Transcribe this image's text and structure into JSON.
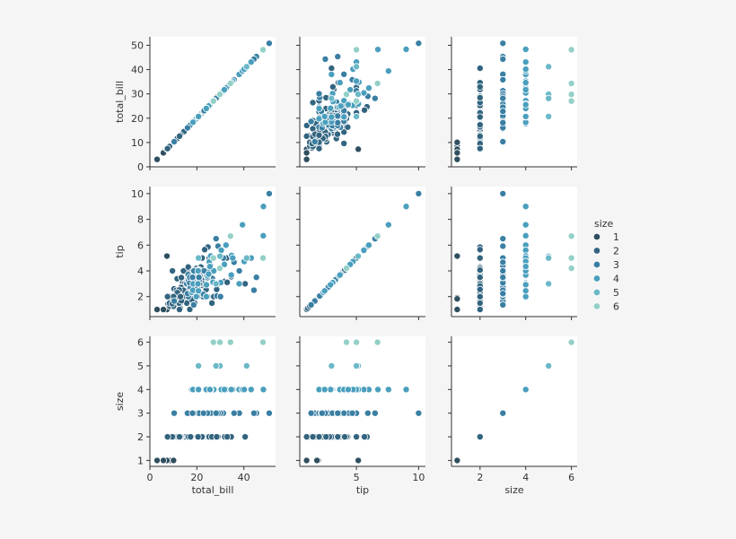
{
  "chart_data": {
    "type": "scatter",
    "title": "",
    "variables": [
      "total_bill",
      "tip",
      "size"
    ],
    "hue": "size",
    "legend": {
      "title": "size",
      "placement": "right",
      "entries": [
        {
          "label": "1",
          "color": "#2f4f5f"
        },
        {
          "label": "2",
          "color": "#32647f"
        },
        {
          "label": "3",
          "color": "#3a7fa3"
        },
        {
          "label": "4",
          "color": "#4a9fbd"
        },
        {
          "label": "5",
          "color": "#6bb8c8"
        },
        {
          "label": "6",
          "color": "#93d0c8"
        }
      ]
    },
    "axes": {
      "total_bill": {
        "label": "total_bill",
        "range": [
          0,
          53.5
        ],
        "ticks": [
          0,
          10,
          20,
          30,
          40,
          50
        ],
        "bottom_ticks": [
          0,
          20,
          40
        ]
      },
      "tip": {
        "label": "tip",
        "range": [
          0.45,
          10.55
        ],
        "ticks": [
          2,
          4,
          6,
          8,
          10
        ],
        "bottom_ticks": [
          5,
          10
        ]
      },
      "size": {
        "label": "size",
        "range": [
          0.75,
          6.25
        ],
        "ticks": [
          1,
          2,
          3,
          4,
          5,
          6
        ],
        "bottom_ticks": [
          2,
          4,
          6
        ]
      }
    },
    "points": [
      [
        3.07,
        1.0,
        1
      ],
      [
        5.75,
        1.0,
        1
      ],
      [
        7.25,
        1.0,
        1
      ],
      [
        8.58,
        1.92,
        1
      ],
      [
        10.07,
        1.83,
        1
      ],
      [
        9.6,
        4.0,
        2
      ],
      [
        7.25,
        5.15,
        1
      ],
      [
        10.34,
        1.66,
        3
      ],
      [
        10.29,
        2.6,
        2
      ],
      [
        11.02,
        1.98,
        2
      ],
      [
        12.54,
        2.5,
        2
      ],
      [
        13.0,
        2.0,
        2
      ],
      [
        14.78,
        3.23,
        2
      ],
      [
        15.04,
        1.96,
        2
      ],
      [
        16.99,
        1.01,
        2
      ],
      [
        17.81,
        2.34,
        4
      ],
      [
        18.43,
        3.0,
        4
      ],
      [
        18.04,
        3.0,
        2
      ],
      [
        19.49,
        3.51,
        2
      ],
      [
        20.29,
        2.75,
        2
      ],
      [
        20.65,
        3.35,
        3
      ],
      [
        21.01,
        3.5,
        3
      ],
      [
        21.58,
        3.92,
        2
      ],
      [
        22.23,
        5.0,
        2
      ],
      [
        22.42,
        3.48,
        2
      ],
      [
        23.68,
        3.31,
        2
      ],
      [
        24.59,
        3.61,
        4
      ],
      [
        24.06,
        3.6,
        3
      ],
      [
        25.29,
        4.71,
        4
      ],
      [
        25.56,
        4.34,
        4
      ],
      [
        26.88,
        3.12,
        4
      ],
      [
        28.44,
        2.56,
        2
      ],
      [
        27.2,
        4.0,
        4
      ],
      [
        29.85,
        5.14,
        5
      ],
      [
        30.14,
        3.09,
        4
      ],
      [
        31.27,
        5.0,
        3
      ],
      [
        32.4,
        6.0,
        4
      ],
      [
        34.81,
        5.2,
        4
      ],
      [
        35.26,
        5.0,
        4
      ],
      [
        38.01,
        3.0,
        4
      ],
      [
        39.42,
        7.58,
        4
      ],
      [
        40.17,
        4.73,
        4
      ],
      [
        45.35,
        3.5,
        3
      ],
      [
        48.27,
        6.73,
        4
      ],
      [
        48.33,
        9.0,
        4
      ],
      [
        50.81,
        10.0,
        3
      ],
      [
        44.3,
        2.5,
        3
      ],
      [
        41.19,
        5.0,
        5
      ],
      [
        27.05,
        5.0,
        6
      ],
      [
        29.8,
        4.2,
        6
      ],
      [
        34.3,
        6.7,
        6
      ],
      [
        48.17,
        5.0,
        6
      ],
      [
        28.15,
        3.0,
        5
      ],
      [
        20.69,
        5.0,
        5
      ],
      [
        15.69,
        3.0,
        3
      ],
      [
        16.31,
        2.0,
        3
      ],
      [
        17.92,
        4.08,
        2
      ],
      [
        12.69,
        2.0,
        2
      ],
      [
        9.55,
        1.45,
        2
      ],
      [
        14.48,
        2.0,
        2
      ],
      [
        16.0,
        2.0,
        2
      ],
      [
        16.29,
        3.71,
        3
      ],
      [
        11.35,
        2.5,
        2
      ],
      [
        13.42,
        1.58,
        2
      ],
      [
        22.82,
        2.18,
        3
      ],
      [
        19.82,
        3.18,
        2
      ],
      [
        17.29,
        2.71,
        2
      ],
      [
        13.81,
        2.0,
        2
      ],
      [
        18.78,
        3.0,
        2
      ],
      [
        24.27,
        2.03,
        2
      ],
      [
        26.41,
        1.5,
        2
      ],
      [
        21.16,
        3.0,
        2
      ],
      [
        15.48,
        2.02,
        2
      ],
      [
        16.58,
        4.0,
        2
      ],
      [
        12.02,
        1.97,
        2
      ],
      [
        14.07,
        2.5,
        2
      ],
      [
        20.23,
        2.01,
        2
      ],
      [
        15.98,
        3.0,
        2
      ],
      [
        12.03,
        1.5,
        2
      ],
      [
        13.27,
        2.5,
        2
      ],
      [
        24.52,
        3.48,
        3
      ],
      [
        32.68,
        5.0,
        2
      ],
      [
        23.33,
        5.65,
        2
      ],
      [
        22.67,
        2.0,
        2
      ],
      [
        17.07,
        3.0,
        3
      ],
      [
        11.61,
        3.39,
        2
      ],
      [
        28.55,
        2.05,
        3
      ],
      [
        13.94,
        3.06,
        2
      ],
      [
        9.68,
        1.32,
        2
      ],
      [
        30.4,
        5.6,
        4
      ],
      [
        18.71,
        4.0,
        3
      ],
      [
        25.0,
        3.75,
        4
      ],
      [
        25.89,
        5.16,
        4
      ],
      [
        31.85,
        3.18,
        2
      ],
      [
        35.83,
        4.67,
        3
      ],
      [
        16.82,
        4.0,
        2
      ],
      [
        20.45,
        3.0,
        4
      ],
      [
        23.95,
        2.55,
        2
      ],
      [
        17.46,
        2.54,
        2
      ],
      [
        25.71,
        4.0,
        3
      ],
      [
        18.69,
        2.31,
        3
      ],
      [
        14.31,
        4.0,
        2
      ],
      [
        19.08,
        1.5,
        2
      ],
      [
        20.08,
        3.15,
        3
      ],
      [
        22.75,
        3.25,
        2
      ],
      [
        34.63,
        3.55,
        2
      ],
      [
        15.53,
        3.0,
        2
      ],
      [
        26.59,
        3.41,
        3
      ],
      [
        23.1,
        4.0,
        3
      ],
      [
        21.7,
        4.3,
        2
      ],
      [
        11.87,
        1.63,
        2
      ],
      [
        20.92,
        4.08,
        2
      ],
      [
        17.26,
        2.74,
        3
      ],
      [
        19.65,
        3.0,
        2
      ],
      [
        15.38,
        3.0,
        2
      ],
      [
        12.76,
        2.23,
        2
      ],
      [
        9.78,
        1.73,
        2
      ],
      [
        13.13,
        2.0,
        2
      ],
      [
        8.77,
        2.0,
        2
      ],
      [
        27.28,
        4.0,
        2
      ],
      [
        15.36,
        1.64,
        2
      ],
      [
        10.65,
        1.5,
        2
      ],
      [
        21.5,
        3.5,
        2
      ],
      [
        22.49,
        3.5,
        2
      ],
      [
        18.24,
        3.76,
        2
      ],
      [
        7.74,
        1.44,
        2
      ],
      [
        30.06,
        2.0,
        3
      ],
      [
        25.89,
        4.4,
        3
      ],
      [
        21.01,
        3.0,
        2
      ],
      [
        14.73,
        2.2,
        2
      ],
      [
        19.44,
        3.0,
        2
      ],
      [
        16.66,
        3.4,
        2
      ],
      [
        21.0,
        3.3,
        3
      ],
      [
        12.9,
        1.1,
        2
      ],
      [
        10.59,
        1.61,
        2
      ],
      [
        17.89,
        2.0,
        2
      ],
      [
        20.76,
        2.24,
        2
      ],
      [
        13.0,
        2.6,
        2
      ],
      [
        16.4,
        2.5,
        2
      ],
      [
        38.07,
        4.0,
        3
      ],
      [
        24.55,
        2.0,
        4
      ],
      [
        34.65,
        3.68,
        4
      ],
      [
        22.12,
        2.88,
        2
      ],
      [
        14.83,
        3.02,
        2
      ],
      [
        43.11,
        5.0,
        4
      ],
      [
        40.55,
        3.0,
        2
      ],
      [
        28.97,
        3.0,
        2
      ],
      [
        20.9,
        3.5,
        3
      ],
      [
        19.77,
        2.0,
        4
      ],
      [
        15.01,
        2.09,
        2
      ],
      [
        11.24,
        1.76,
        2
      ],
      [
        16.47,
        3.23,
        3
      ],
      [
        22.76,
        3.0,
        2
      ],
      [
        31.71,
        4.5,
        4
      ],
      [
        24.71,
        5.85,
        2
      ],
      [
        21.16,
        3.0,
        2
      ],
      [
        16.93,
        3.07,
        3
      ],
      [
        18.35,
        2.5,
        4
      ],
      [
        26.86,
        3.14,
        2
      ],
      [
        12.16,
        2.2,
        2
      ],
      [
        25.28,
        5.0,
        2
      ],
      [
        16.32,
        4.3,
        2
      ],
      [
        13.39,
        2.61,
        2
      ],
      [
        8.51,
        1.25,
        2
      ],
      [
        10.33,
        2.0,
        2
      ],
      [
        32.9,
        3.11,
        2
      ],
      [
        18.28,
        4.0,
        2
      ],
      [
        15.81,
        3.16,
        2
      ],
      [
        11.17,
        1.5,
        2
      ],
      [
        12.26,
        2.0,
        2
      ],
      [
        13.51,
        2.0,
        2
      ],
      [
        44.3,
        2.5,
        3
      ],
      [
        39.42,
        7.58,
        4
      ],
      [
        13.16,
        2.75,
        2
      ],
      [
        18.26,
        3.25,
        2
      ],
      [
        12.46,
        1.5,
        2
      ],
      [
        24.08,
        2.92,
        4
      ],
      [
        17.51,
        3.0,
        2
      ],
      [
        19.44,
        3.0,
        2
      ],
      [
        20.53,
        4.0,
        4
      ],
      [
        23.33,
        5.65,
        2
      ],
      [
        15.95,
        2.0,
        2
      ],
      [
        16.45,
        2.47,
        2
      ],
      [
        27.18,
        2.0,
        2
      ],
      [
        13.28,
        2.72,
        2
      ],
      [
        29.03,
        5.92,
        3
      ],
      [
        22.67,
        2.0,
        2
      ],
      [
        14.26,
        2.5,
        2
      ],
      [
        18.64,
        1.36,
        3
      ],
      [
        10.07,
        1.25,
        2
      ],
      [
        24.01,
        2.0,
        4
      ],
      [
        18.15,
        3.5,
        3
      ],
      [
        25.21,
        4.29,
        2
      ],
      [
        28.17,
        6.5,
        3
      ],
      [
        17.82,
        1.75,
        2
      ],
      [
        15.69,
        1.5,
        2
      ],
      [
        19.81,
        4.19,
        2
      ],
      [
        15.98,
        2.03,
        2
      ],
      [
        22.42,
        3.48,
        2
      ],
      [
        16.97,
        3.5,
        3
      ],
      [
        12.48,
        2.52,
        2
      ],
      [
        14.52,
        2.0,
        2
      ],
      [
        20.27,
        2.83,
        2
      ],
      [
        11.69,
        2.31,
        2
      ],
      [
        13.42,
        3.48,
        2
      ],
      [
        17.47,
        3.5,
        2
      ],
      [
        34.3,
        6.7,
        6
      ],
      [
        41.19,
        5.0,
        5
      ],
      [
        27.05,
        5.0,
        6
      ],
      [
        16.43,
        2.3,
        2
      ],
      [
        8.35,
        1.5,
        2
      ],
      [
        18.64,
        1.36,
        3
      ],
      [
        13.42,
        1.68,
        2
      ],
      [
        29.8,
        4.2,
        6
      ],
      [
        20.69,
        2.45,
        4
      ],
      [
        24.52,
        3.48,
        3
      ],
      [
        35.83,
        4.67,
        3
      ],
      [
        50.81,
        10.0,
        3
      ],
      [
        48.27,
        6.73,
        4
      ],
      [
        40.17,
        4.73,
        4
      ],
      [
        48.33,
        9.0,
        4
      ],
      [
        7.25,
        5.15,
        1
      ],
      [
        22.82,
        2.18,
        3
      ],
      [
        17.31,
        3.5,
        2
      ],
      [
        16.04,
        2.24,
        3
      ],
      [
        13.03,
        2.0,
        2
      ],
      [
        18.15,
        3.5,
        3
      ],
      [
        10.09,
        2.0,
        2
      ],
      [
        20.23,
        2.01,
        2
      ],
      [
        3.07,
        1.0,
        1
      ],
      [
        5.75,
        1.0,
        1
      ],
      [
        9.55,
        1.45,
        2
      ],
      [
        12.6,
        1.0,
        2
      ],
      [
        7.51,
        2.0,
        2
      ],
      [
        26.41,
        1.5,
        2
      ],
      [
        22.23,
        5.0,
        2
      ],
      [
        20.49,
        4.06,
        2
      ],
      [
        25.56,
        4.34,
        4
      ],
      [
        28.44,
        2.56,
        2
      ]
    ]
  }
}
